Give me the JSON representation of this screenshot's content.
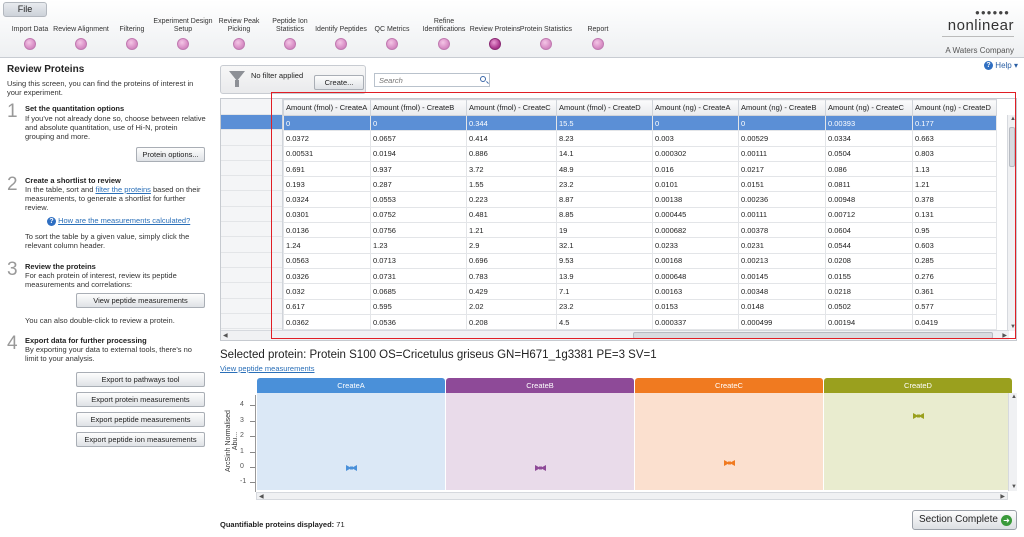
{
  "file_menu": "File",
  "workflow": [
    {
      "label": "Import Data"
    },
    {
      "label": "Review Alignment"
    },
    {
      "label": "Filtering"
    },
    {
      "label": "Experiment Design Setup"
    },
    {
      "label": "Review Peak Picking"
    },
    {
      "label": "Peptide Ion Statistics"
    },
    {
      "label": "Identify Peptides"
    },
    {
      "label": "QC Metrics"
    },
    {
      "label": "Refine Identifications"
    },
    {
      "label": "Review Proteins",
      "active": true
    },
    {
      "label": "Protein Statistics"
    },
    {
      "label": "Report"
    }
  ],
  "logo": {
    "dots": "●●●●●● ",
    "word": "nonlinear",
    "sub": "A Waters Company"
  },
  "help": "Help",
  "left": {
    "title": "Review Proteins",
    "intro": "Using this screen, you can find the proteins of interest in your experiment.",
    "step1": {
      "num": "1",
      "heading": "Set the quantitation options",
      "text": "If you've not already done so, choose between relative and absolute quantitation, use of Hi-N, protein grouping and more.",
      "button": "Protein options..."
    },
    "step2": {
      "num": "2",
      "heading": "Create a shortlist to review",
      "text_a": "In the table, sort and ",
      "link": "filter the proteins",
      "text_b": " based on their measurements, to generate a shortlist for further review.",
      "how_link": "How are the measurements calculated?",
      "sort_text": "To sort the table by a given value, simply click the relevant column header."
    },
    "step3": {
      "num": "3",
      "heading": "Review the proteins",
      "text": "For each protein of interest, review its peptide measurements and correlations:",
      "button": "View peptide measurements",
      "dbl": "You can also double-click to review a protein."
    },
    "step4": {
      "num": "4",
      "heading": "Export data for further processing",
      "text": "By exporting your data to external tools, there's no limit to your analysis.",
      "buttons": [
        "Export to pathways tool",
        "Export protein measurements",
        "Export peptide measurements",
        "Export peptide ion measurements"
      ]
    }
  },
  "filter": {
    "text": "No filter applied",
    "create": "Create...",
    "search_placeholder": "Search"
  },
  "table": {
    "columns": [
      "Amount (fmol) - CreateA",
      "Amount (fmol) - CreateB",
      "Amount (fmol) - CreateC",
      "Amount (fmol) - CreateD",
      "Amount (ng) - CreateA",
      "Amount (ng) - CreateB",
      "Amount (ng) - CreateC",
      "Amount (ng) - CreateD"
    ],
    "rows": [
      [
        "0",
        "0",
        "0.344",
        "15.5",
        "0",
        "0",
        "0.00393",
        "0.177"
      ],
      [
        "0.0372",
        "0.0657",
        "0.414",
        "8.23",
        "0.003",
        "0.00529",
        "0.0334",
        "0.663"
      ],
      [
        "0.00531",
        "0.0194",
        "0.886",
        "14.1",
        "0.000302",
        "0.00111",
        "0.0504",
        "0.803"
      ],
      [
        "0.691",
        "0.937",
        "3.72",
        "48.9",
        "0.016",
        "0.0217",
        "0.086",
        "1.13"
      ],
      [
        "0.193",
        "0.287",
        "1.55",
        "23.2",
        "0.0101",
        "0.0151",
        "0.0811",
        "1.21"
      ],
      [
        "0.0324",
        "0.0553",
        "0.223",
        "8.87",
        "0.00138",
        "0.00236",
        "0.00948",
        "0.378"
      ],
      [
        "0.0301",
        "0.0752",
        "0.481",
        "8.85",
        "0.000445",
        "0.00111",
        "0.00712",
        "0.131"
      ],
      [
        "0.0136",
        "0.0756",
        "1.21",
        "19",
        "0.000682",
        "0.00378",
        "0.0604",
        "0.95"
      ],
      [
        "1.24",
        "1.23",
        "2.9",
        "32.1",
        "0.0233",
        "0.0231",
        "0.0544",
        "0.603"
      ],
      [
        "0.0563",
        "0.0713",
        "0.696",
        "9.53",
        "0.00168",
        "0.00213",
        "0.0208",
        "0.285"
      ],
      [
        "0.0326",
        "0.0731",
        "0.783",
        "13.9",
        "0.000648",
        "0.00145",
        "0.0155",
        "0.276"
      ],
      [
        "0.032",
        "0.0685",
        "0.429",
        "7.1",
        "0.00163",
        "0.00348",
        "0.0218",
        "0.361"
      ],
      [
        "0.617",
        "0.595",
        "2.02",
        "23.2",
        "0.0153",
        "0.0148",
        "0.0502",
        "0.577"
      ],
      [
        "0.0362",
        "0.0536",
        "0.208",
        "4.5",
        "0.000337",
        "0.000499",
        "0.00194",
        "0.0419"
      ]
    ],
    "selected_row": 0
  },
  "selected_protein": {
    "title": "Selected protein: Protein S100 OS=Cricetulus griseus GN=H671_1g3381 PE=3 SV=1",
    "link": "View peptide measurements"
  },
  "plot": {
    "ylabel": "ArcSinh Normalised Abu...",
    "yticks": [
      "4",
      "3",
      "2",
      "1",
      "0",
      "-1"
    ],
    "conditions": [
      {
        "name": "CreateA",
        "color": "#4a90d9",
        "bg": "#dbe8f6",
        "value": 0
      },
      {
        "name": "CreateB",
        "color": "#8e4a98",
        "bg": "#e9dbea",
        "value": 0
      },
      {
        "name": "CreateC",
        "color": "#f07a20",
        "bg": "#fbe0cf",
        "value": 0.3
      },
      {
        "name": "CreateD",
        "color": "#9aa01e",
        "bg": "#e9eccf",
        "value": 3.4
      }
    ],
    "ymin": -1.5,
    "ymax": 4.8
  },
  "footer": {
    "count_label": "Quantifiable proteins displayed:",
    "count": "71",
    "section_complete": "Section Complete"
  }
}
